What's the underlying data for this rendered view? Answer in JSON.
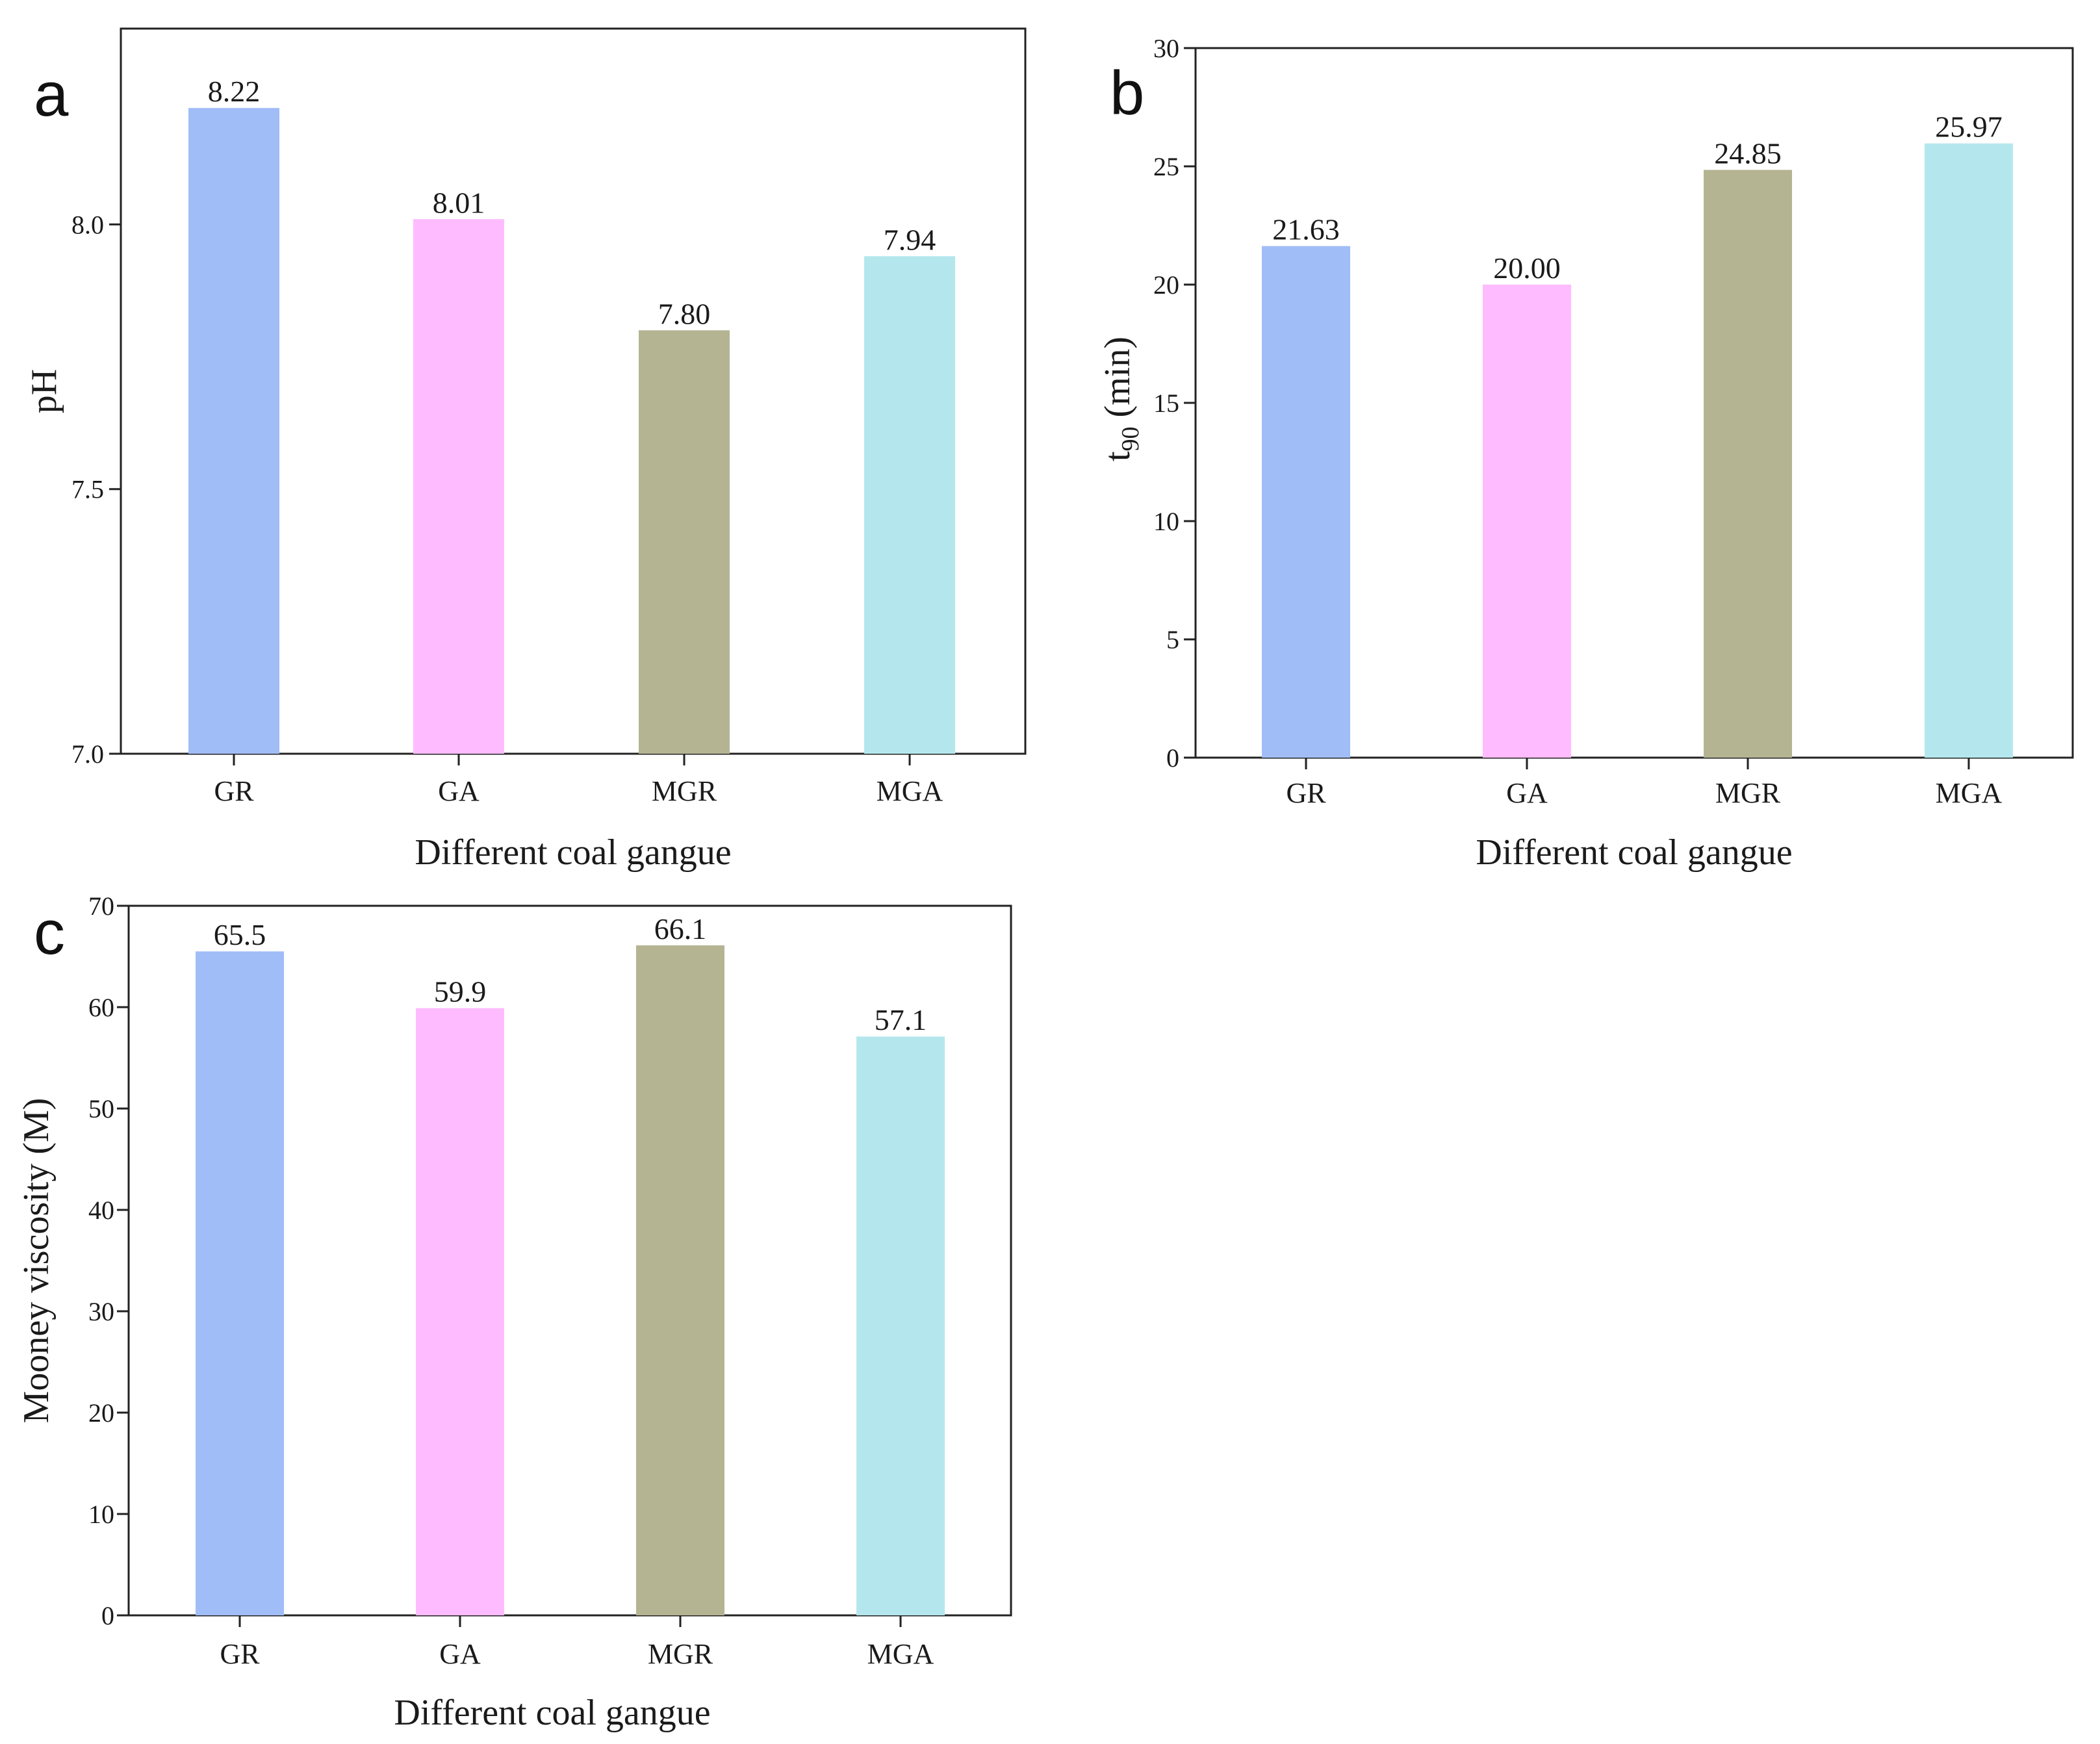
{
  "chart_data": [
    {
      "panel_letter": "a",
      "type": "bar",
      "categories": [
        "GR",
        "GA",
        "MGR",
        "MGA"
      ],
      "values": [
        8.22,
        8.01,
        7.8,
        7.94
      ],
      "value_labels": [
        "8.22",
        "8.01",
        "7.80",
        "7.94"
      ],
      "colors": [
        "#a1bdf8",
        "#ffbbff",
        "#b4b493",
        "#b4e7ed"
      ],
      "title": "",
      "xlabel": "Different coal gangue",
      "ylabel": "pH",
      "ylim": [
        7.0,
        8.37
      ],
      "yticks": [
        7.0,
        7.5,
        8.0
      ],
      "ytick_labels": [
        "7.0",
        "7.5",
        "8.0"
      ],
      "grid": false,
      "legend": "none"
    },
    {
      "panel_letter": "b",
      "type": "bar",
      "categories": [
        "GR",
        "GA",
        "MGR",
        "MGA"
      ],
      "values": [
        21.63,
        20.0,
        24.85,
        25.97
      ],
      "value_labels": [
        "21.63",
        "20.00",
        "24.85",
        "25.97"
      ],
      "colors": [
        "#a1bdf8",
        "#ffbbff",
        "#b4b493",
        "#b4e7ed"
      ],
      "title": "",
      "xlabel": "Different coal gangue",
      "ylabel_main": "t",
      "ylabel_sub": "90",
      "ylabel_rest": " (min)",
      "ylim": [
        0,
        30
      ],
      "yticks": [
        0,
        5,
        10,
        15,
        20,
        25,
        30
      ],
      "ytick_labels": [
        "0",
        "5",
        "10",
        "15",
        "20",
        "25",
        "30"
      ],
      "grid": false,
      "legend": "none"
    },
    {
      "panel_letter": "c",
      "type": "bar",
      "categories": [
        "GR",
        "GA",
        "MGR",
        "MGA"
      ],
      "values": [
        65.5,
        59.9,
        66.1,
        57.1
      ],
      "value_labels": [
        "65.5",
        "59.9",
        "66.1",
        "57.1"
      ],
      "colors": [
        "#a1bdf8",
        "#ffbbff",
        "#b4b493",
        "#b4e7ed"
      ],
      "title": "",
      "xlabel": "Different coal gangue",
      "ylabel": "Mooney viscosity (M)",
      "ylim": [
        0,
        70
      ],
      "yticks": [
        0,
        10,
        20,
        30,
        40,
        50,
        60,
        70
      ],
      "ytick_labels": [
        "0",
        "10",
        "20",
        "30",
        "40",
        "50",
        "60",
        "70"
      ],
      "grid": false,
      "legend": "none"
    }
  ]
}
